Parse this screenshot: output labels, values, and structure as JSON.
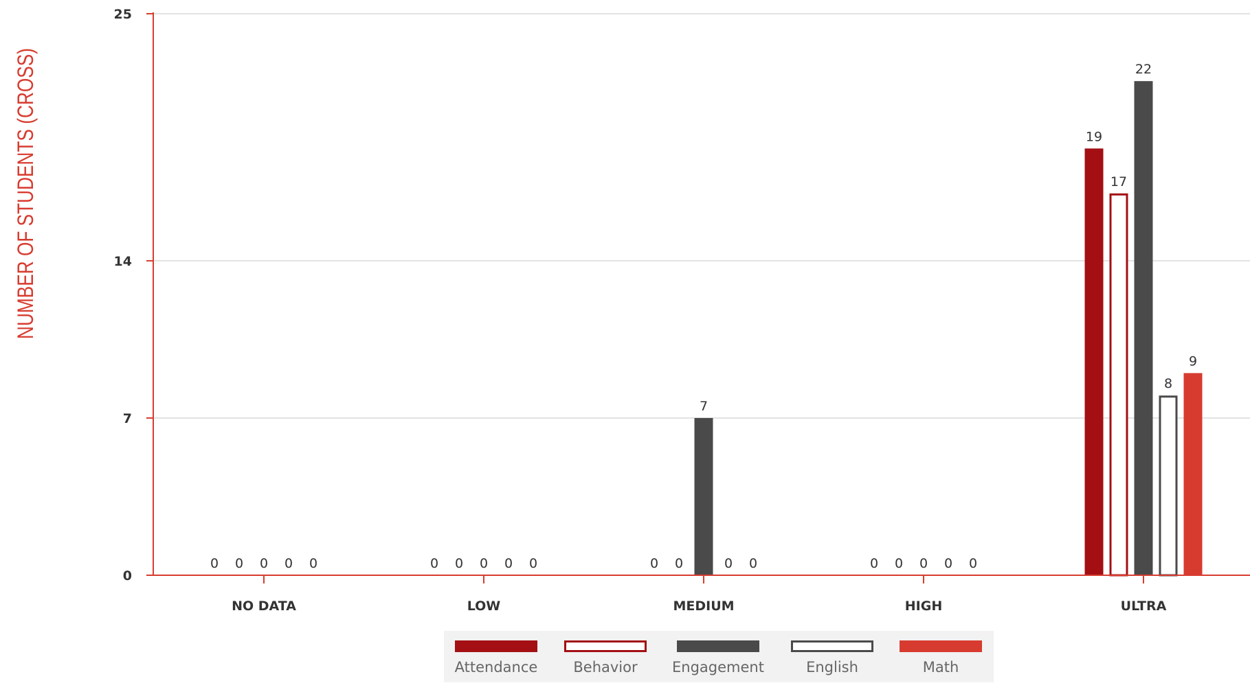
{
  "chart_data": {
    "type": "bar",
    "ylabel": "NUMBER OF STUDENTS (CROSS)",
    "xlabel": "",
    "title": "",
    "categories": [
      "NO DATA",
      "LOW",
      "MEDIUM",
      "HIGH",
      "ULTRA"
    ],
    "yticks": [
      0,
      7,
      14,
      25
    ],
    "ylim": [
      0,
      25
    ],
    "grid": true,
    "legend_position": "bottom-center",
    "series": [
      {
        "name": "Attendance",
        "values": [
          0,
          0,
          0,
          0,
          19
        ],
        "color": "#a30f13",
        "style": "filled"
      },
      {
        "name": "Behavior",
        "values": [
          0,
          0,
          0,
          0,
          17
        ],
        "color": "#a30f13",
        "style": "outline"
      },
      {
        "name": "Engagement",
        "values": [
          0,
          0,
          7,
          0,
          22
        ],
        "color": "#4a4a4a",
        "style": "filled"
      },
      {
        "name": "English",
        "values": [
          0,
          0,
          0,
          0,
          8
        ],
        "color": "#4a4a4a",
        "style": "outline"
      },
      {
        "name": "Math",
        "values": [
          0,
          0,
          0,
          0,
          9
        ],
        "color": "#d73b2f",
        "style": "filled"
      }
    ]
  },
  "colors": {
    "axis": "#d73b2f",
    "grid": "#d9d9d9",
    "ylabel": "#d73b2f",
    "legend_bg": "#f2f2f2"
  }
}
